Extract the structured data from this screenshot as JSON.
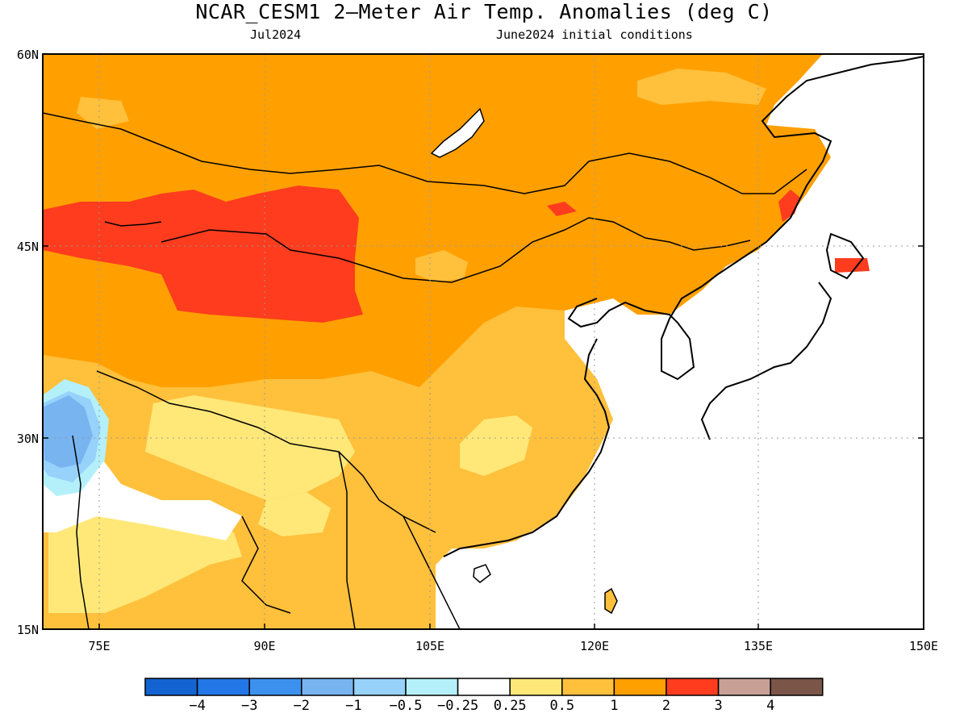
{
  "title": "NCAR_CESM1 2—Meter Air Temp. Anomalies (deg C)",
  "subtitle_left": "Jul2024",
  "subtitle_right": "June2024 initial conditions",
  "map": {
    "projection": "lat-lon",
    "lon_range": [
      69.5,
      150
    ],
    "lat_range": [
      15,
      60
    ],
    "lon_ticks": [
      "75E",
      "90E",
      "105E",
      "120E",
      "135E",
      "150E"
    ],
    "lat_ticks": [
      "60N",
      "45N",
      "30N",
      "15N"
    ],
    "grid": true
  },
  "colorbar": {
    "colors": [
      "#1463d2",
      "#2477e6",
      "#3c91ee",
      "#78b4f0",
      "#96d2fa",
      "#b4f0fa",
      "#ffffff",
      "#ffe878",
      "#ffc03c",
      "#ffa000",
      "#ff3c1e",
      "#c8a096",
      "#7a5548"
    ],
    "labels": [
      "−4",
      "−3",
      "−2",
      "−1",
      "−0.5",
      "−0.25",
      "0.25",
      "0.5",
      "1",
      "2",
      "3",
      "4"
    ]
  }
}
